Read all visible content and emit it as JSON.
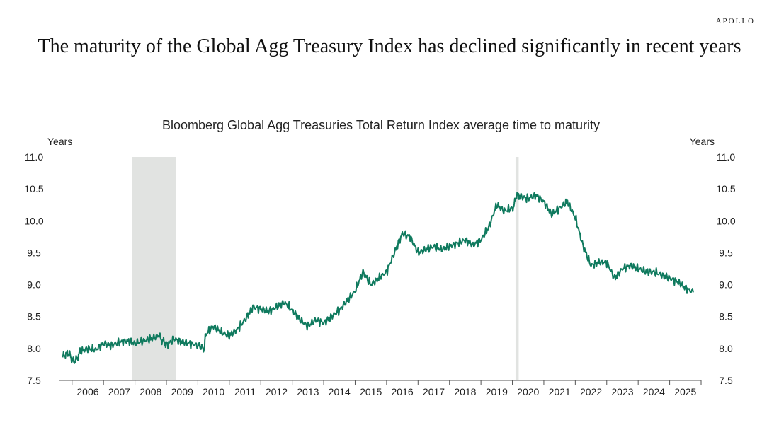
{
  "brand": "APOLLO",
  "headline": "The maturity of the Global Agg Treasury Index has declined significantly in recent years",
  "chart_data": {
    "type": "line",
    "title": "Bloomberg Global Agg Treasuries Total Return Index average time to maturity",
    "ylabel_left": "Years",
    "ylabel_right": "Years",
    "ylim": [
      7.5,
      11.0
    ],
    "xlim": [
      2005.6,
      2026.0
    ],
    "yticks": [
      "7.5",
      "8.0",
      "8.5",
      "9.0",
      "9.5",
      "10.0",
      "10.5",
      "11.0"
    ],
    "xticks": [
      "2006",
      "2007",
      "2008",
      "2009",
      "2010",
      "2011",
      "2012",
      "2013",
      "2014",
      "2015",
      "2016",
      "2017",
      "2018",
      "2019",
      "2020",
      "2021",
      "2022",
      "2023",
      "2024",
      "2025"
    ],
    "shaded_periods": [
      [
        2007.9,
        2009.3
      ],
      [
        2020.1,
        2020.2
      ]
    ],
    "line_color": "#0f7a5e",
    "shade_color": "#e1e3e1",
    "series": [
      {
        "x": [
          2005.7,
          2005.85,
          2006.0,
          2006.1,
          2006.25,
          2006.5,
          2006.75,
          2007.0,
          2007.25,
          2007.5,
          2007.75,
          2008.0,
          2008.25,
          2008.5,
          2008.75,
          2008.9,
          2009.0,
          2009.25,
          2009.5,
          2009.75,
          2010.0,
          2010.2,
          2010.25,
          2010.5,
          2010.75,
          2011.0,
          2011.25,
          2011.5,
          2011.75,
          2012.0,
          2012.25,
          2012.5,
          2012.75,
          2013.0,
          2013.25,
          2013.5,
          2013.75,
          2014.0,
          2014.25,
          2014.5,
          2014.75,
          2015.0,
          2015.25,
          2015.5,
          2015.75,
          2016.0,
          2016.25,
          2016.5,
          2016.75,
          2017.0,
          2017.25,
          2017.5,
          2017.75,
          2018.0,
          2018.25,
          2018.5,
          2018.75,
          2019.0,
          2019.25,
          2019.5,
          2019.75,
          2020.0,
          2020.15,
          2020.25,
          2020.5,
          2020.75,
          2021.0,
          2021.25,
          2021.5,
          2021.75,
          2022.0,
          2022.25,
          2022.5,
          2022.75,
          2023.0,
          2023.25,
          2023.5,
          2023.75,
          2024.0,
          2024.25,
          2024.5,
          2024.75,
          2025.0,
          2025.25,
          2025.5,
          2025.75
        ],
        "y": [
          7.85,
          7.95,
          7.82,
          7.8,
          7.95,
          8.0,
          7.98,
          8.08,
          8.05,
          8.1,
          8.12,
          8.08,
          8.12,
          8.15,
          8.2,
          8.12,
          8.05,
          8.15,
          8.1,
          8.08,
          8.05,
          8.0,
          8.22,
          8.35,
          8.25,
          8.2,
          8.3,
          8.45,
          8.65,
          8.62,
          8.58,
          8.65,
          8.72,
          8.6,
          8.45,
          8.35,
          8.45,
          8.4,
          8.5,
          8.6,
          8.75,
          8.9,
          9.2,
          9.0,
          9.1,
          9.2,
          9.5,
          9.8,
          9.75,
          9.5,
          9.55,
          9.6,
          9.55,
          9.6,
          9.65,
          9.7,
          9.62,
          9.7,
          9.9,
          10.25,
          10.15,
          10.2,
          10.4,
          10.38,
          10.35,
          10.4,
          10.3,
          10.1,
          10.2,
          10.3,
          10.05,
          9.6,
          9.3,
          9.35,
          9.35,
          9.1,
          9.25,
          9.3,
          9.25,
          9.2,
          9.2,
          9.15,
          9.1,
          9.05,
          8.95,
          8.88
        ]
      }
    ]
  }
}
